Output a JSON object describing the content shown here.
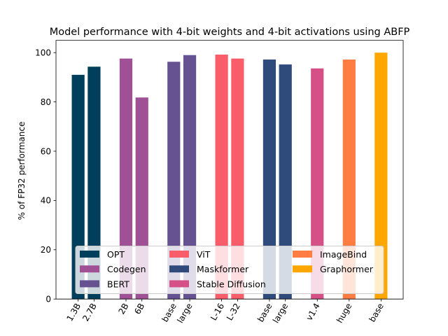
{
  "chart_data": {
    "type": "bar",
    "title": "Model performance with 4-bit weights and 4-bit activations using ABFP",
    "xlabel": "",
    "ylabel": "% of FP32 performance",
    "ylim": [
      0,
      105
    ],
    "yticks": [
      0,
      20,
      40,
      60,
      80,
      100
    ],
    "grid": false,
    "legend_position": "lower-center",
    "legend_columns": 3,
    "groups": [
      {
        "name": "OPT",
        "color": "#003f5c",
        "bars": [
          {
            "label": "1.3B",
            "value": 91.0
          },
          {
            "label": "2.7B",
            "value": 94.3
          }
        ]
      },
      {
        "name": "Codegen",
        "color": "#a05195",
        "bars": [
          {
            "label": "2B",
            "value": 97.6
          },
          {
            "label": "6B",
            "value": 81.8
          }
        ]
      },
      {
        "name": "BERT",
        "color": "#665191",
        "bars": [
          {
            "label": "base",
            "value": 96.3
          },
          {
            "label": "large",
            "value": 99.0
          }
        ]
      },
      {
        "name": "ViT",
        "color": "#f95d6a",
        "bars": [
          {
            "label": "L-16",
            "value": 99.2
          },
          {
            "label": "L-32",
            "value": 97.6
          }
        ]
      },
      {
        "name": "Maskformer",
        "color": "#2f4b7c",
        "bars": [
          {
            "label": "base",
            "value": 97.2
          },
          {
            "label": "large",
            "value": 95.2
          }
        ]
      },
      {
        "name": "Stable Diffusion",
        "color": "#d45087",
        "bars": [
          {
            "label": "v1.4",
            "value": 93.6
          }
        ]
      },
      {
        "name": "ImageBind",
        "color": "#ff7c43",
        "bars": [
          {
            "label": "huge",
            "value": 97.2
          }
        ]
      },
      {
        "name": "Graphormer",
        "color": "#ffa600",
        "bars": [
          {
            "label": "base",
            "value": 100.0
          }
        ]
      }
    ]
  }
}
